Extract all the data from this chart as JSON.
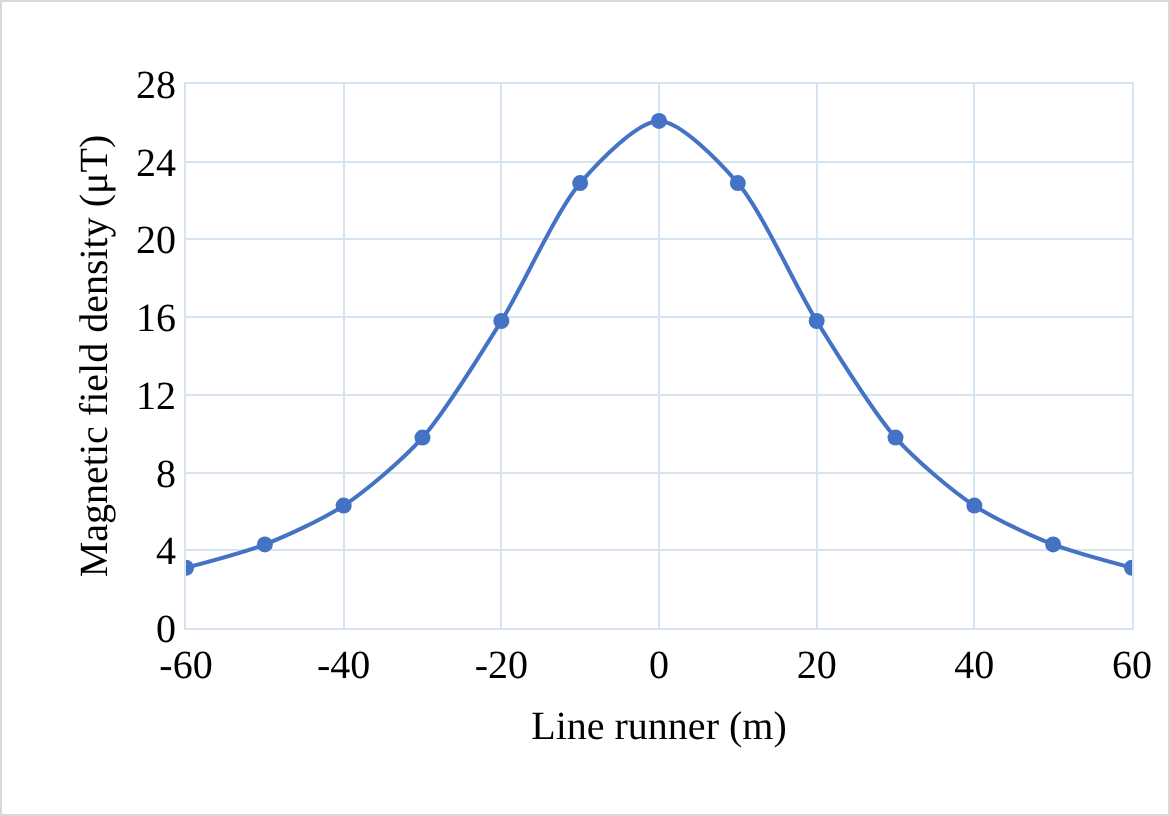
{
  "chart_data": {
    "type": "line",
    "xlabel": "Line runner (m)",
    "ylabel": "Magnetic field density (μT)",
    "x": [
      -60,
      -50,
      -40,
      -30,
      -20,
      -10,
      0,
      10,
      20,
      30,
      40,
      50,
      60
    ],
    "series": [
      {
        "color": "#4472c4",
        "values": [
          3.1,
          4.3,
          6.3,
          9.8,
          15.8,
          22.9,
          26.1,
          22.9,
          15.8,
          9.8,
          6.3,
          4.3,
          3.1
        ]
      }
    ],
    "xlim": [
      -60,
      60
    ],
    "xticks": [
      -60,
      -40,
      -20,
      0,
      20,
      40,
      60
    ],
    "ylim": [
      0,
      28
    ],
    "yticks": [
      0,
      4,
      8,
      12,
      16,
      20,
      24,
      28
    ],
    "grid": true,
    "marker": "circle",
    "line_style": "solid"
  }
}
